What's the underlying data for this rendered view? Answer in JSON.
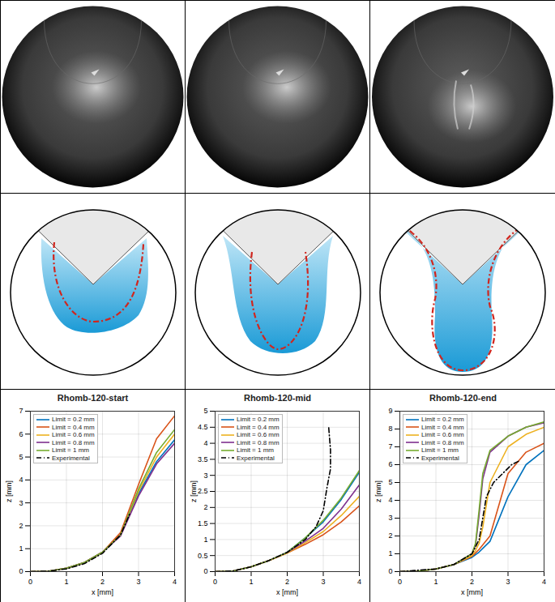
{
  "chart_data": [
    {
      "type": "line",
      "title": "Rhomb-120-start",
      "x_label": "x [mm]",
      "y_label": "z [mm]",
      "xlim": [
        0,
        4
      ],
      "xticks": [
        0,
        1,
        2,
        3,
        4
      ],
      "ylim": [
        0,
        7
      ],
      "yticks": [
        0,
        1,
        2,
        3,
        4,
        5,
        6,
        7
      ],
      "grid": true,
      "legend": "top-left",
      "series": [
        {
          "name": "Limit = 0.2 mm",
          "color": "#0072BD",
          "line_style": "solid",
          "x": [
            0,
            0.5,
            1,
            1.5,
            2,
            2.5,
            3,
            3.5,
            4
          ],
          "values": [
            0,
            0.02,
            0.15,
            0.4,
            0.85,
            1.6,
            3.4,
            4.8,
            5.75
          ]
        },
        {
          "name": "Limit = 0.4 mm",
          "color": "#D95319",
          "line_style": "solid",
          "x": [
            0,
            0.5,
            1,
            1.5,
            2,
            2.5,
            3,
            3.5,
            4
          ],
          "values": [
            0,
            0.02,
            0.15,
            0.4,
            0.85,
            1.7,
            3.8,
            5.8,
            6.8
          ]
        },
        {
          "name": "Limit = 0.6 mm",
          "color": "#EDB120",
          "line_style": "solid",
          "x": [
            0,
            0.5,
            1,
            1.5,
            2,
            2.5,
            3,
            3.5,
            4
          ],
          "values": [
            0,
            0.02,
            0.15,
            0.4,
            0.85,
            1.6,
            3.5,
            5.0,
            6.0
          ]
        },
        {
          "name": "Limit = 0.8 mm",
          "color": "#7E2F8E",
          "line_style": "solid",
          "x": [
            0,
            0.5,
            1,
            1.5,
            2,
            2.5,
            3,
            3.5,
            4
          ],
          "values": [
            0,
            0.02,
            0.15,
            0.4,
            0.85,
            1.55,
            3.3,
            4.7,
            5.6
          ]
        },
        {
          "name": "Limit = 1 mm",
          "color": "#77AC30",
          "line_style": "solid",
          "x": [
            0,
            0.5,
            1,
            1.5,
            2,
            2.5,
            3,
            3.5,
            4
          ],
          "values": [
            0,
            0.02,
            0.15,
            0.4,
            0.85,
            1.6,
            3.6,
            5.2,
            6.2
          ]
        },
        {
          "name": "Experimental",
          "color": "#000000",
          "line_style": "dashdot",
          "x": [
            0,
            0.5,
            1,
            1.5,
            2,
            2.5,
            2.75
          ],
          "values": [
            0,
            0.02,
            0.12,
            0.35,
            0.8,
            1.6,
            2.5
          ]
        }
      ]
    },
    {
      "type": "line",
      "title": "Rhomb-120-mid",
      "x_label": "x [mm]",
      "y_label": "z [mm]",
      "xlim": [
        0,
        4
      ],
      "xticks": [
        0,
        1,
        2,
        3,
        4
      ],
      "ylim": [
        0,
        5
      ],
      "yticks": [
        0,
        0.5,
        1,
        1.5,
        2,
        2.5,
        3,
        3.5,
        4,
        4.5,
        5
      ],
      "grid": true,
      "legend": "top-left",
      "series": [
        {
          "name": "Limit = 0.2 mm",
          "color": "#0072BD",
          "line_style": "solid",
          "x": [
            0,
            0.5,
            1,
            1.5,
            2,
            2.5,
            3,
            3.5,
            4
          ],
          "values": [
            0,
            0.02,
            0.15,
            0.35,
            0.6,
            1.05,
            1.55,
            2.25,
            3.1
          ]
        },
        {
          "name": "Limit = 0.4 mm",
          "color": "#D95319",
          "line_style": "solid",
          "x": [
            0,
            0.5,
            1,
            1.5,
            2,
            2.5,
            3,
            3.5,
            4
          ],
          "values": [
            0,
            0.02,
            0.15,
            0.35,
            0.58,
            0.85,
            1.15,
            1.55,
            2.05
          ]
        },
        {
          "name": "Limit = 0.6 mm",
          "color": "#EDB120",
          "line_style": "solid",
          "x": [
            0,
            0.5,
            1,
            1.5,
            2,
            2.5,
            3,
            3.5,
            4
          ],
          "values": [
            0,
            0.02,
            0.15,
            0.35,
            0.58,
            0.9,
            1.25,
            1.75,
            2.35
          ]
        },
        {
          "name": "Limit = 0.8 mm",
          "color": "#7E2F8E",
          "line_style": "solid",
          "x": [
            0,
            0.5,
            1,
            1.5,
            2,
            2.5,
            3,
            3.5,
            4
          ],
          "values": [
            0,
            0.02,
            0.15,
            0.35,
            0.6,
            0.95,
            1.35,
            1.95,
            2.7
          ]
        },
        {
          "name": "Limit = 1 mm",
          "color": "#77AC30",
          "line_style": "solid",
          "x": [
            0,
            0.5,
            1,
            1.5,
            2,
            2.5,
            3,
            3.5,
            4
          ],
          "values": [
            0,
            0.02,
            0.15,
            0.35,
            0.6,
            1.05,
            1.6,
            2.3,
            3.15
          ]
        },
        {
          "name": "Experimental",
          "color": "#000000",
          "line_style": "dashdot",
          "x": [
            0,
            0.5,
            1,
            1.5,
            2,
            2.5,
            2.8,
            3,
            3.1,
            3.2,
            3.2,
            3.15
          ],
          "values": [
            0,
            0.02,
            0.15,
            0.35,
            0.6,
            1.0,
            1.4,
            1.9,
            2.6,
            3.2,
            3.8,
            4.5
          ]
        }
      ]
    },
    {
      "type": "line",
      "title": "Rhomb-120-end",
      "x_label": "x [mm]",
      "y_label": "z [mm]",
      "xlim": [
        0,
        4
      ],
      "xticks": [
        0,
        1,
        2,
        3,
        4
      ],
      "ylim": [
        0,
        9
      ],
      "yticks": [
        0,
        1,
        2,
        3,
        4,
        5,
        6,
        7,
        8,
        9
      ],
      "grid": true,
      "legend": "top-left",
      "series": [
        {
          "name": "Limit = 0.2 mm",
          "color": "#0072BD",
          "line_style": "solid",
          "x": [
            0,
            0.5,
            1,
            1.5,
            2,
            2.1,
            2.2,
            2.3,
            2.5,
            3,
            3.5,
            4
          ],
          "values": [
            0,
            0.02,
            0.15,
            0.4,
            0.8,
            0.95,
            1.1,
            1.3,
            1.7,
            4.2,
            6.0,
            6.8
          ]
        },
        {
          "name": "Limit = 0.4 mm",
          "color": "#D95319",
          "line_style": "solid",
          "x": [
            0,
            0.5,
            1,
            1.5,
            2,
            2.1,
            2.2,
            2.3,
            2.5,
            3,
            3.5,
            4
          ],
          "values": [
            0,
            0.02,
            0.15,
            0.4,
            0.85,
            1.05,
            1.25,
            1.5,
            2.0,
            5.5,
            6.7,
            7.2
          ]
        },
        {
          "name": "Limit = 0.6 mm",
          "color": "#EDB120",
          "line_style": "solid",
          "x": [
            0,
            0.5,
            1,
            1.5,
            2,
            2.1,
            2.2,
            2.3,
            2.5,
            3,
            3.5,
            4
          ],
          "values": [
            0,
            0.02,
            0.15,
            0.4,
            0.9,
            1.2,
            1.6,
            2.5,
            5.0,
            7.0,
            7.7,
            8.1
          ]
        },
        {
          "name": "Limit = 0.8 mm",
          "color": "#7E2F8E",
          "line_style": "solid",
          "x": [
            0,
            0.5,
            1,
            1.5,
            2,
            2.1,
            2.2,
            2.3,
            2.5,
            3,
            3.5,
            4
          ],
          "values": [
            0,
            0.02,
            0.15,
            0.4,
            1.0,
            1.5,
            3.2,
            5.2,
            6.7,
            7.6,
            8.1,
            8.35
          ]
        },
        {
          "name": "Limit = 1 mm",
          "color": "#77AC30",
          "line_style": "solid",
          "x": [
            0,
            0.5,
            1,
            1.5,
            2,
            2.1,
            2.2,
            2.3,
            2.5,
            3,
            3.5,
            4
          ],
          "values": [
            0,
            0.02,
            0.15,
            0.4,
            1.0,
            1.6,
            3.5,
            5.5,
            6.8,
            7.6,
            8.1,
            8.4
          ]
        },
        {
          "name": "Experimental",
          "color": "#000000",
          "line_style": "dashdot",
          "x": [
            0,
            1,
            1.5,
            2,
            2.2,
            2.3,
            2.4,
            2.6,
            2.9,
            3.1,
            3.3
          ],
          "values": [
            0,
            0.15,
            0.4,
            1.0,
            1.8,
            3.0,
            4.2,
            5.0,
            5.6,
            6.0,
            6.2
          ]
        }
      ]
    }
  ]
}
